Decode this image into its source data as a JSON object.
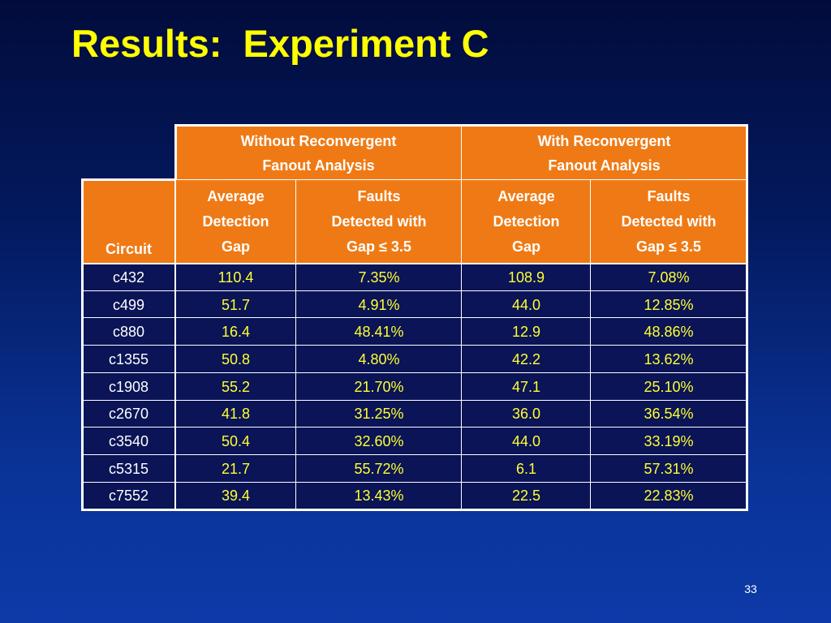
{
  "slide": {
    "title": "Results:  Experiment C",
    "page_number": "33"
  },
  "table": {
    "group_headers": [
      "Without Reconvergent\nFanout Analysis",
      "With Reconvergent\nFanout Analysis"
    ],
    "circuit_header": "Circuit",
    "column_headers": [
      "Average\nDetection\nGap",
      "Faults\nDetected with\nGap ≤ 3.5",
      "Average\nDetection\nGap",
      "Faults\nDetected with\nGap ≤ 3.5"
    ],
    "rows": [
      {
        "circuit": "c432",
        "values": [
          "110.4",
          "7.35%",
          "108.9",
          "7.08%"
        ]
      },
      {
        "circuit": "c499",
        "values": [
          "51.7",
          "4.91%",
          "44.0",
          "12.85%"
        ]
      },
      {
        "circuit": "c880",
        "values": [
          "16.4",
          "48.41%",
          "12.9",
          "48.86%"
        ]
      },
      {
        "circuit": "c1355",
        "values": [
          "50.8",
          "4.80%",
          "42.2",
          "13.62%"
        ]
      },
      {
        "circuit": "c1908",
        "values": [
          "55.2",
          "21.70%",
          "47.1",
          "25.10%"
        ]
      },
      {
        "circuit": "c2670",
        "values": [
          "41.8",
          "31.25%",
          "36.0",
          "36.54%"
        ]
      },
      {
        "circuit": "c3540",
        "values": [
          "50.4",
          "32.60%",
          "44.0",
          "33.19%"
        ]
      },
      {
        "circuit": "c5315",
        "values": [
          "21.7",
          "55.72%",
          "6.1",
          "57.31%"
        ]
      },
      {
        "circuit": "c7552",
        "values": [
          "39.4",
          "13.43%",
          "22.5",
          "22.83%"
        ]
      }
    ]
  },
  "colors": {
    "background_top": "#020c3c",
    "background_bottom": "#0c3aa8",
    "title": "#ffff00",
    "header_fill": "#ef7a15",
    "header_text": "#ffffff",
    "cell_fill": "#0a1456",
    "circuit_text": "#ffffff",
    "value_text": "#ffff33",
    "grid": "#ffffff"
  }
}
